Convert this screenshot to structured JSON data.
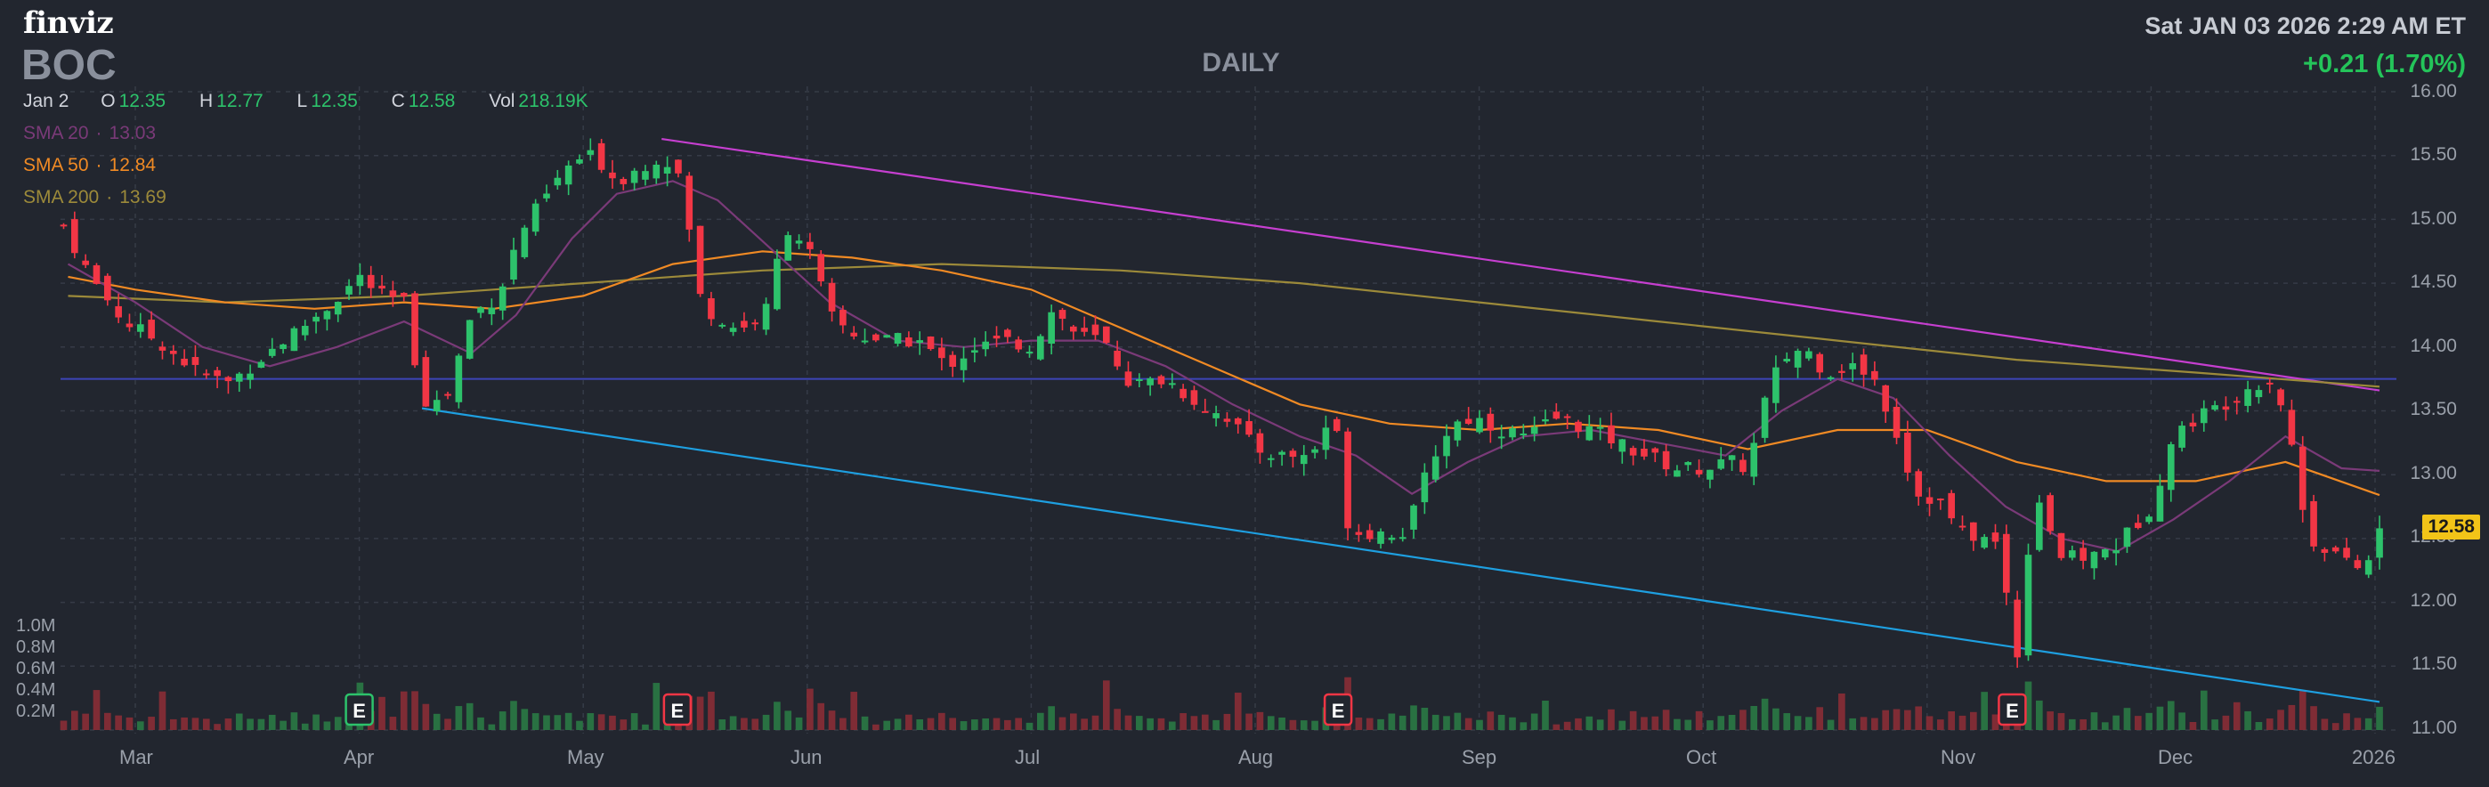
{
  "header": {
    "logo": "finviz",
    "ticker": "BOC",
    "period": "DAILY",
    "datetime": "Sat JAN 03 2026 2:29 AM ET",
    "change": "+0.21 (1.70%)"
  },
  "ohlc": {
    "date": "Jan 2",
    "o_label": "O",
    "o": "12.35",
    "h_label": "H",
    "h": "12.77",
    "l_label": "L",
    "l": "12.35",
    "c_label": "C",
    "c": "12.58",
    "vol_label": "Vol",
    "vol": "218.19K"
  },
  "sma": [
    {
      "label": "SMA 20",
      "value": "13.03",
      "color": "#7a3a78"
    },
    {
      "label": "SMA 50",
      "value": "12.84",
      "color": "#f08a24"
    },
    {
      "label": "SMA 200",
      "value": "13.69",
      "color": "#9c8a3a"
    }
  ],
  "last_price_tag": "12.58",
  "colors": {
    "up": "#2dc26b",
    "down": "#f23645",
    "resistance": "#c63fd0",
    "support": "#1e9fe0",
    "horizontal": "#3d45b8"
  },
  "chart_data": {
    "type": "candlestick",
    "y_axis": {
      "ticks": [
        "16.00",
        "15.50",
        "15.00",
        "14.50",
        "14.00",
        "13.50",
        "13.00",
        "12.50",
        "12.00",
        "11.50",
        "11.00"
      ],
      "range": [
        11.0,
        16.0
      ]
    },
    "volume_axis": {
      "ticks": [
        "1.0M",
        "0.8M",
        "0.6M",
        "0.4M",
        "0.2M"
      ]
    },
    "x_axis": {
      "ticks": [
        "Mar",
        "Apr",
        "May",
        "Jun",
        "Jul",
        "Aug",
        "Sep",
        "Oct",
        "Nov",
        "Dec",
        "2026"
      ]
    },
    "earnings_markers": [
      {
        "label": "E",
        "month_pos": 1.0,
        "color": "#2dc26b"
      },
      {
        "label": "E",
        "month_pos": 2.42,
        "color": "#f23645"
      },
      {
        "label": "E",
        "month_pos": 5.37,
        "color": "#f23645"
      },
      {
        "label": "E",
        "month_pos": 8.38,
        "color": "#f23645"
      }
    ],
    "close_path": [
      [
        -0.32,
        14.95
      ],
      [
        -0.2,
        14.55
      ],
      [
        -0.05,
        14.2
      ],
      [
        0.1,
        14.05
      ],
      [
        0.28,
        13.8
      ],
      [
        0.42,
        13.72
      ],
      [
        0.55,
        13.9
      ],
      [
        0.7,
        14.1
      ],
      [
        0.85,
        14.3
      ],
      [
        1.0,
        14.55
      ],
      [
        1.1,
        14.4
      ],
      [
        1.2,
        14.35
      ],
      [
        1.28,
        13.6
      ],
      [
        1.38,
        13.55
      ],
      [
        1.5,
        14.25
      ],
      [
        1.62,
        14.4
      ],
      [
        1.72,
        14.9
      ],
      [
        1.82,
        15.15
      ],
      [
        1.95,
        15.45
      ],
      [
        2.05,
        15.5
      ],
      [
        2.15,
        15.3
      ],
      [
        2.25,
        15.4
      ],
      [
        2.35,
        15.5
      ],
      [
        2.45,
        15.3
      ],
      [
        2.5,
        14.45
      ],
      [
        2.6,
        14.2
      ],
      [
        2.72,
        14.15
      ],
      [
        2.82,
        14.3
      ],
      [
        2.9,
        14.95
      ],
      [
        3.0,
        14.8
      ],
      [
        3.1,
        14.25
      ],
      [
        3.2,
        14.1
      ],
      [
        3.35,
        14.05
      ],
      [
        3.5,
        14.05
      ],
      [
        3.62,
        13.85
      ],
      [
        3.75,
        14.0
      ],
      [
        3.88,
        14.05
      ],
      [
        4.0,
        14.0
      ],
      [
        4.1,
        14.3
      ],
      [
        4.2,
        14.1
      ],
      [
        4.32,
        14.05
      ],
      [
        4.45,
        13.7
      ],
      [
        4.6,
        13.75
      ],
      [
        4.75,
        13.55
      ],
      [
        4.88,
        13.45
      ],
      [
        5.0,
        13.2
      ],
      [
        5.12,
        13.15
      ],
      [
        5.25,
        13.15
      ],
      [
        5.35,
        13.5
      ],
      [
        5.42,
        12.55
      ],
      [
        5.55,
        12.55
      ],
      [
        5.68,
        12.55
      ],
      [
        5.78,
        13.1
      ],
      [
        5.88,
        13.4
      ],
      [
        5.98,
        13.45
      ],
      [
        6.1,
        13.35
      ],
      [
        6.22,
        13.3
      ],
      [
        6.35,
        13.45
      ],
      [
        6.5,
        13.35
      ],
      [
        6.62,
        13.25
      ],
      [
        6.75,
        13.15
      ],
      [
        6.88,
        13.05
      ],
      [
        7.0,
        13.05
      ],
      [
        7.12,
        13.1
      ],
      [
        7.2,
        13.05
      ],
      [
        7.28,
        13.6
      ],
      [
        7.35,
        13.9
      ],
      [
        7.45,
        14.0
      ],
      [
        7.55,
        13.8
      ],
      [
        7.65,
        13.85
      ],
      [
        7.75,
        13.8
      ],
      [
        7.85,
        13.4
      ],
      [
        7.95,
        12.85
      ],
      [
        8.05,
        12.8
      ],
      [
        8.15,
        12.55
      ],
      [
        8.25,
        12.5
      ],
      [
        8.32,
        12.45
      ],
      [
        8.4,
        11.55
      ],
      [
        8.48,
        12.9
      ],
      [
        8.6,
        12.35
      ],
      [
        8.72,
        12.35
      ],
      [
        8.85,
        12.45
      ],
      [
        9.0,
        12.75
      ],
      [
        9.1,
        13.3
      ],
      [
        9.2,
        13.45
      ],
      [
        9.32,
        13.55
      ],
      [
        9.45,
        13.7
      ],
      [
        9.55,
        13.75
      ],
      [
        9.62,
        13.3
      ],
      [
        9.7,
        12.5
      ],
      [
        9.82,
        12.4
      ],
      [
        9.9,
        12.25
      ],
      [
        10.0,
        12.35
      ],
      [
        10.02,
        12.58
      ]
    ],
    "sma20_path": [
      [
        -0.3,
        14.65
      ],
      [
        0.0,
        14.35
      ],
      [
        0.3,
        14.0
      ],
      [
        0.6,
        13.85
      ],
      [
        0.9,
        14.0
      ],
      [
        1.2,
        14.2
      ],
      [
        1.5,
        13.95
      ],
      [
        1.7,
        14.25
      ],
      [
        1.95,
        14.85
      ],
      [
        2.15,
        15.2
      ],
      [
        2.4,
        15.3
      ],
      [
        2.6,
        15.15
      ],
      [
        2.85,
        14.75
      ],
      [
        3.1,
        14.35
      ],
      [
        3.4,
        14.05
      ],
      [
        3.7,
        14.0
      ],
      [
        4.0,
        14.05
      ],
      [
        4.3,
        14.05
      ],
      [
        4.6,
        13.85
      ],
      [
        4.9,
        13.55
      ],
      [
        5.2,
        13.3
      ],
      [
        5.45,
        13.15
      ],
      [
        5.7,
        12.85
      ],
      [
        5.95,
        13.1
      ],
      [
        6.2,
        13.3
      ],
      [
        6.5,
        13.35
      ],
      [
        6.8,
        13.25
      ],
      [
        7.1,
        13.15
      ],
      [
        7.35,
        13.5
      ],
      [
        7.6,
        13.75
      ],
      [
        7.85,
        13.6
      ],
      [
        8.1,
        13.15
      ],
      [
        8.35,
        12.75
      ],
      [
        8.6,
        12.5
      ],
      [
        8.85,
        12.4
      ],
      [
        9.1,
        12.65
      ],
      [
        9.35,
        12.95
      ],
      [
        9.6,
        13.3
      ],
      [
        9.85,
        13.05
      ],
      [
        10.02,
        13.03
      ]
    ],
    "sma50_path": [
      [
        -0.3,
        14.55
      ],
      [
        0.0,
        14.45
      ],
      [
        0.4,
        14.35
      ],
      [
        0.8,
        14.3
      ],
      [
        1.2,
        14.35
      ],
      [
        1.6,
        14.3
      ],
      [
        2.0,
        14.4
      ],
      [
        2.4,
        14.65
      ],
      [
        2.8,
        14.75
      ],
      [
        3.2,
        14.7
      ],
      [
        3.6,
        14.6
      ],
      [
        4.0,
        14.45
      ],
      [
        4.4,
        14.15
      ],
      [
        4.8,
        13.85
      ],
      [
        5.2,
        13.55
      ],
      [
        5.6,
        13.4
      ],
      [
        6.0,
        13.35
      ],
      [
        6.4,
        13.4
      ],
      [
        6.8,
        13.35
      ],
      [
        7.2,
        13.2
      ],
      [
        7.6,
        13.35
      ],
      [
        8.0,
        13.35
      ],
      [
        8.4,
        13.1
      ],
      [
        8.8,
        12.95
      ],
      [
        9.2,
        12.95
      ],
      [
        9.6,
        13.1
      ],
      [
        10.02,
        12.84
      ]
    ],
    "sma200_path": [
      [
        -0.3,
        14.4
      ],
      [
        0.4,
        14.35
      ],
      [
        1.2,
        14.4
      ],
      [
        2.0,
        14.5
      ],
      [
        2.8,
        14.6
      ],
      [
        3.6,
        14.65
      ],
      [
        4.4,
        14.6
      ],
      [
        5.2,
        14.5
      ],
      [
        6.0,
        14.35
      ],
      [
        6.8,
        14.2
      ],
      [
        7.6,
        14.05
      ],
      [
        8.4,
        13.9
      ],
      [
        9.2,
        13.8
      ],
      [
        10.02,
        13.69
      ]
    ],
    "resistance_line": [
      [
        2.35,
        15.63
      ],
      [
        10.02,
        13.66
      ]
    ],
    "support_line": [
      [
        1.28,
        13.52
      ],
      [
        10.02,
        11.22
      ]
    ],
    "horizontal_line": 13.75
  }
}
